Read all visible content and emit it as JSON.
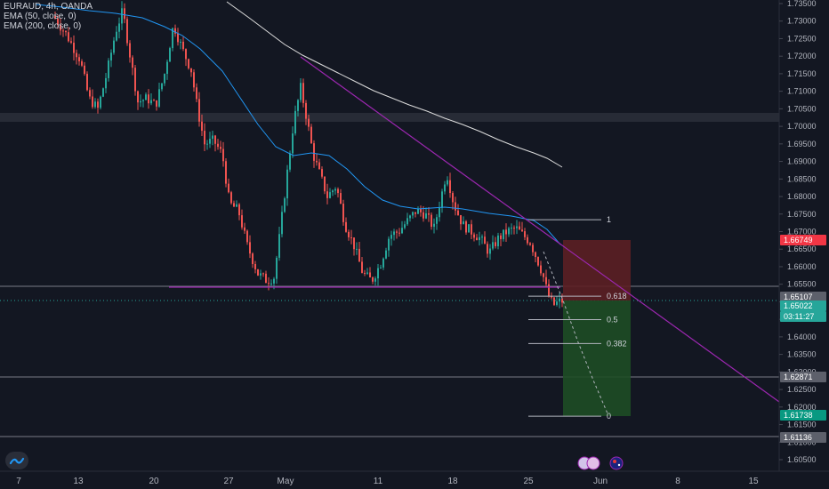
{
  "legend": {
    "symbol_line": "EURAUD, 4h, OANDA",
    "ema50_line": "EMA (50, close, 0)",
    "ema200_line": "EMA (200, close, 0)"
  },
  "colors": {
    "background": "#131722",
    "up_candle": "#26a69a",
    "down_candle": "#ef5350",
    "ema50": "#2196f3",
    "ema200": "#e0e0e0",
    "trendline": "#9c27b0",
    "stop_zone": "#7b1f28",
    "target_zone": "#1b5e20",
    "price_label": "#26a69a",
    "stop_label": "#f23645",
    "target_label": "#089981",
    "grey_label": "#5d606b"
  },
  "y_axis_ticks": [
    "1.73500",
    "1.73000",
    "1.72500",
    "1.72000",
    "1.71500",
    "1.71000",
    "1.70500",
    "1.70000",
    "1.69500",
    "1.69000",
    "1.68500",
    "1.68000",
    "1.67500",
    "1.67000",
    "1.66500",
    "1.66000",
    "1.65500",
    "1.65000",
    "1.64500",
    "1.64000",
    "1.63500",
    "1.63000",
    "1.62500",
    "1.62000",
    "1.61500",
    "1.61000",
    "1.60500"
  ],
  "x_axis_ticks": [
    "7",
    "13",
    "20",
    "27",
    "May",
    "11",
    "18",
    "25",
    "Jun",
    "8",
    "15"
  ],
  "price_labels": {
    "stop": "1.66749",
    "level_upper": "1.65107",
    "current": "1.65022",
    "countdown": "03:11:27",
    "level_lower": "1.62871",
    "target": "1.61738",
    "bottom_level": "1.61136"
  },
  "fib_levels": [
    {
      "label": "1",
      "price": 1.6734
    },
    {
      "label": "0.618",
      "price": 1.6516
    },
    {
      "label": "0.5",
      "price": 1.6449
    },
    {
      "label": "0.382",
      "price": 1.6381
    },
    {
      "label": "0",
      "price": 1.6174
    }
  ],
  "icons": [
    "tradingview-logo-icon",
    "event-flag-icon",
    "eu-flag-icon",
    "au-flag-icon"
  ]
}
